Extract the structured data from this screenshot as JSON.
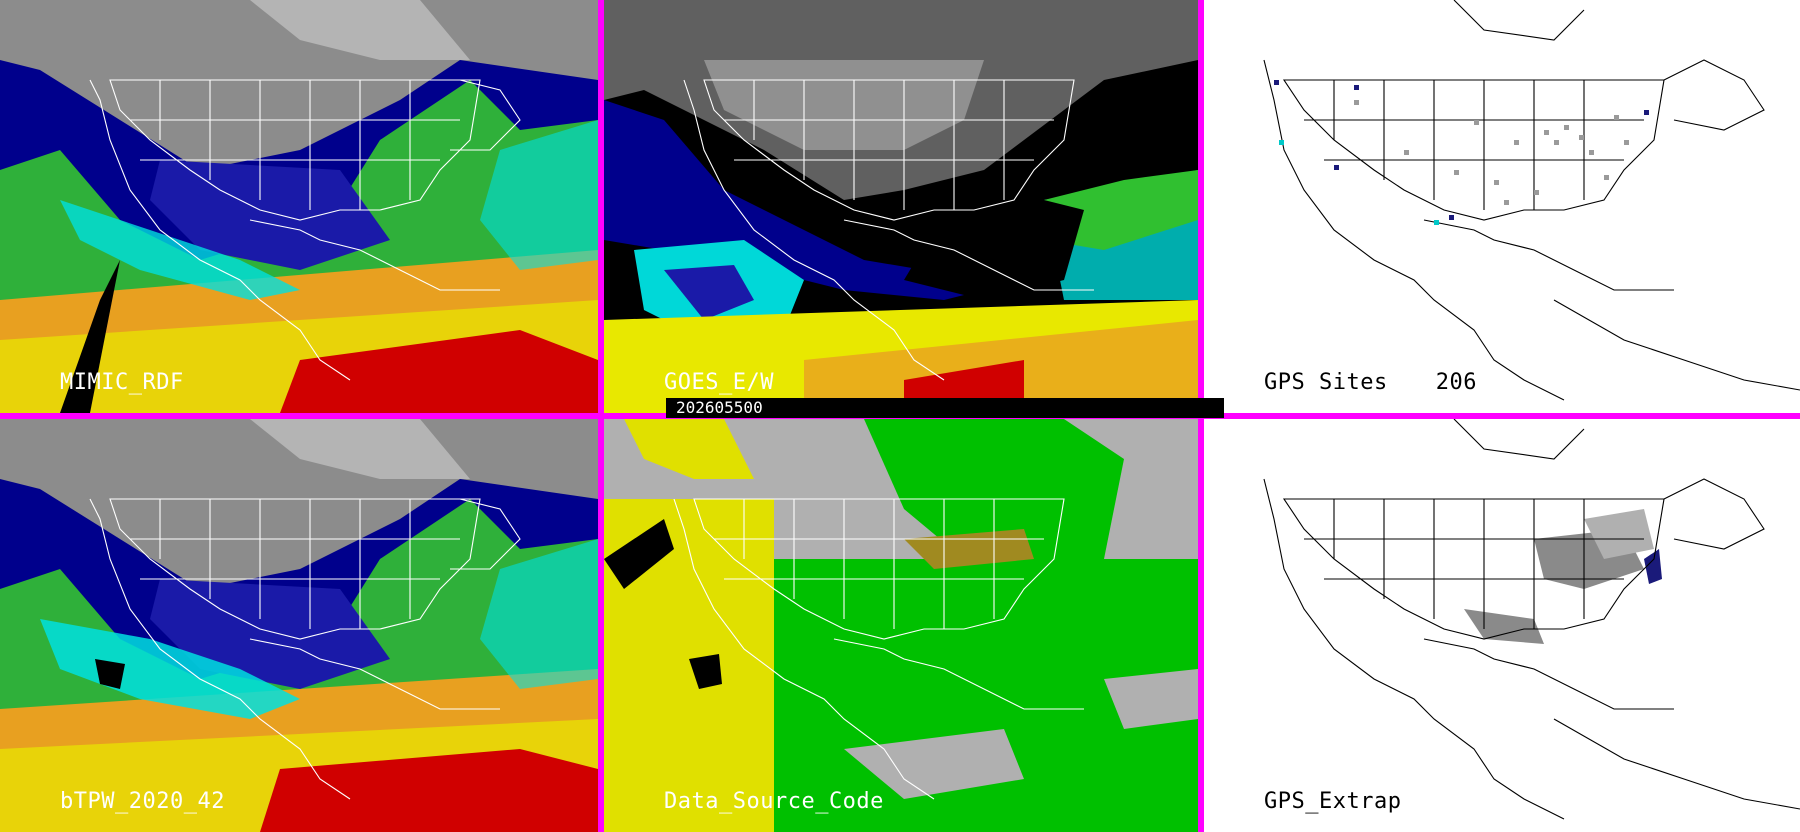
{
  "timestamp": "202605500",
  "panels": [
    {
      "id": "p1",
      "label": "MIMIC_RDF",
      "theme": "dark"
    },
    {
      "id": "p2",
      "label": "GOES_E/W",
      "theme": "dark"
    },
    {
      "id": "p3",
      "label": "GPS Sites",
      "count": "206",
      "theme": "light"
    },
    {
      "id": "p4",
      "label": "bTPW_2020_42",
      "theme": "dark"
    },
    {
      "id": "p5",
      "label": "Data_Source_Code",
      "theme": "dark"
    },
    {
      "id": "p6",
      "label": "GPS_Extrap",
      "theme": "light"
    }
  ],
  "colors": {
    "divider": "#ff00ff",
    "tpw_ramp": [
      "#d00000",
      "#e08020",
      "#e8e800",
      "#30c030",
      "#00e8e8",
      "#00008c",
      "#1414a0",
      "#c0c0c0",
      "#808080",
      "#000000"
    ],
    "source_code": {
      "satellite": "#00c000",
      "blended": "#e0e000",
      "model": "#b0b0b0",
      "gps": "#a08a20"
    },
    "map_outline_dark": "#ffffff",
    "map_outline_light": "#000000"
  }
}
